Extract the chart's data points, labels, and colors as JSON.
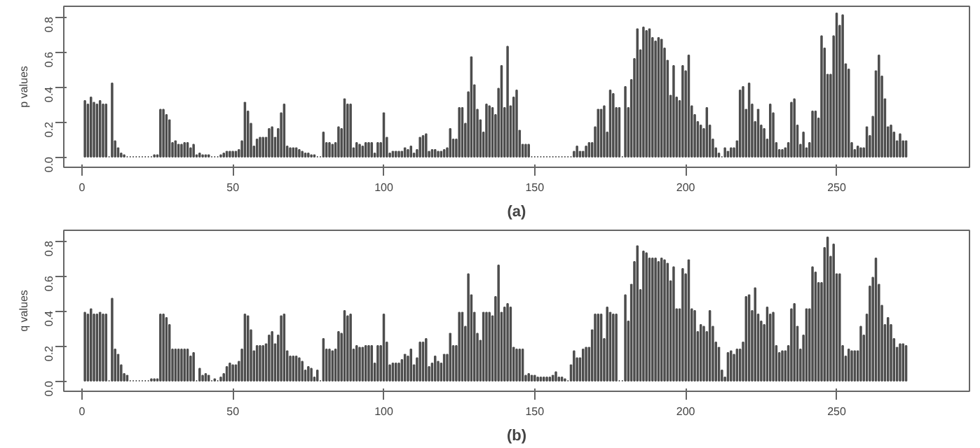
{
  "chart_data": [
    {
      "type": "bar",
      "xlabel": "(a)",
      "ylabel": "p values",
      "color": "#4d4d4d",
      "xlim": [
        -6,
        294
      ],
      "ylim": [
        -0.06,
        0.86
      ],
      "xticks": [
        0,
        50,
        100,
        150,
        200,
        250
      ],
      "yticks": [
        {
          "value": 0,
          "label": "0.0"
        },
        {
          "value": 0.2,
          "label": "0.2"
        },
        {
          "value": 0.4,
          "label": "0.4"
        },
        {
          "value": 0.6,
          "label": "0.6"
        },
        {
          "value": 0.8,
          "label": "0.8"
        }
      ],
      "x": [
        1,
        2,
        3,
        4,
        5,
        6,
        7,
        8,
        9,
        10,
        11,
        12,
        13,
        14,
        15,
        16,
        17,
        18,
        19,
        20,
        21,
        22,
        23,
        24,
        25,
        26,
        27,
        28,
        29,
        30,
        31,
        32,
        33,
        34,
        35,
        36,
        37,
        38,
        39,
        40,
        41,
        42,
        43,
        44,
        45,
        46,
        47,
        48,
        49,
        50,
        51,
        52,
        53,
        54,
        55,
        56,
        57,
        58,
        59,
        60,
        61,
        62,
        63,
        64,
        65,
        66,
        67,
        68,
        69,
        70,
        71,
        72,
        73,
        74,
        75,
        76,
        77,
        78,
        79,
        80,
        81,
        82,
        83,
        84,
        85,
        86,
        87,
        88,
        89,
        90,
        91,
        92,
        93,
        94,
        95,
        96,
        97,
        98,
        99,
        100,
        101,
        102,
        103,
        104,
        105,
        106,
        107,
        108,
        109,
        110,
        111,
        112,
        113,
        114,
        115,
        116,
        117,
        118,
        119,
        120,
        121,
        122,
        123,
        124,
        125,
        126,
        127,
        128,
        129,
        130,
        131,
        132,
        133,
        134,
        135,
        136,
        137,
        138,
        139,
        140,
        141,
        142,
        143,
        144,
        145,
        146,
        147,
        148,
        149,
        150,
        151,
        152,
        153,
        154,
        155,
        156,
        157,
        158,
        159,
        160,
        161,
        162,
        163,
        164,
        165,
        166,
        167,
        168,
        169,
        170,
        171,
        172,
        173,
        174,
        175,
        176,
        177,
        178,
        179,
        180,
        181,
        182,
        183,
        184,
        185,
        186,
        187,
        188,
        189,
        190,
        191,
        192,
        193,
        194,
        195,
        196,
        197,
        198,
        199,
        200,
        201,
        202,
        203,
        204,
        205,
        206,
        207,
        208,
        209,
        210,
        211,
        212,
        213,
        214,
        215,
        216,
        217,
        218,
        219,
        220,
        221,
        222,
        223,
        224,
        225,
        226,
        227,
        228,
        229,
        230,
        231,
        232,
        233,
        234,
        235,
        236,
        237,
        238,
        239,
        240,
        241,
        242,
        243,
        244,
        245,
        246,
        247,
        248,
        249,
        250,
        251,
        252,
        253,
        254,
        255,
        256,
        257,
        258,
        259,
        260,
        261,
        262,
        263,
        264,
        265,
        266,
        267,
        268,
        269,
        270,
        271,
        272,
        273
      ],
      "values": [
        0.32,
        0.3,
        0.34,
        0.31,
        0.3,
        0.32,
        0.3,
        0.3,
        0.0,
        0.42,
        0.09,
        0.05,
        0.02,
        0.01,
        0.0,
        0.0,
        0.0,
        0.0,
        0.0,
        0.0,
        0.0,
        0.0,
        0.0,
        0.01,
        0.01,
        0.27,
        0.27,
        0.24,
        0.21,
        0.08,
        0.09,
        0.07,
        0.07,
        0.08,
        0.08,
        0.05,
        0.07,
        0.01,
        0.02,
        0.01,
        0.01,
        0.01,
        0.0,
        0.0,
        0.0,
        0.01,
        0.02,
        0.03,
        0.03,
        0.03,
        0.03,
        0.04,
        0.09,
        0.31,
        0.26,
        0.19,
        0.06,
        0.1,
        0.11,
        0.11,
        0.11,
        0.16,
        0.17,
        0.11,
        0.16,
        0.25,
        0.3,
        0.06,
        0.05,
        0.05,
        0.05,
        0.04,
        0.03,
        0.02,
        0.02,
        0.01,
        0.01,
        0.0,
        0.0,
        0.14,
        0.08,
        0.08,
        0.07,
        0.08,
        0.17,
        0.16,
        0.33,
        0.3,
        0.3,
        0.05,
        0.08,
        0.07,
        0.06,
        0.08,
        0.08,
        0.08,
        0.02,
        0.08,
        0.08,
        0.25,
        0.11,
        0.02,
        0.03,
        0.03,
        0.03,
        0.03,
        0.05,
        0.04,
        0.06,
        0.02,
        0.04,
        0.11,
        0.12,
        0.13,
        0.03,
        0.04,
        0.04,
        0.03,
        0.03,
        0.04,
        0.05,
        0.16,
        0.1,
        0.1,
        0.28,
        0.28,
        0.19,
        0.37,
        0.57,
        0.41,
        0.27,
        0.21,
        0.14,
        0.3,
        0.29,
        0.28,
        0.24,
        0.39,
        0.52,
        0.28,
        0.63,
        0.29,
        0.34,
        0.38,
        0.15,
        0.07,
        0.07,
        0.07,
        0.0,
        0.0,
        0.0,
        0.0,
        0.0,
        0.0,
        0.0,
        0.0,
        0.0,
        0.0,
        0.0,
        0.0,
        0.0,
        0.0,
        0.03,
        0.06,
        0.03,
        0.03,
        0.06,
        0.08,
        0.08,
        0.17,
        0.27,
        0.27,
        0.29,
        0.14,
        0.38,
        0.36,
        0.28,
        0.28,
        0.0,
        0.4,
        0.28,
        0.44,
        0.56,
        0.73,
        0.61,
        0.74,
        0.72,
        0.73,
        0.68,
        0.66,
        0.68,
        0.67,
        0.62,
        0.55,
        0.35,
        0.52,
        0.34,
        0.32,
        0.52,
        0.49,
        0.58,
        0.29,
        0.24,
        0.2,
        0.18,
        0.16,
        0.28,
        0.18,
        0.1,
        0.05,
        0.02,
        0.0,
        0.05,
        0.03,
        0.05,
        0.05,
        0.09,
        0.38,
        0.4,
        0.27,
        0.42,
        0.3,
        0.2,
        0.27,
        0.18,
        0.16,
        0.1,
        0.3,
        0.25,
        0.08,
        0.04,
        0.04,
        0.05,
        0.08,
        0.31,
        0.33,
        0.18,
        0.07,
        0.14,
        0.05,
        0.08,
        0.26,
        0.26,
        0.22,
        0.69,
        0.62,
        0.47,
        0.47,
        0.69,
        0.82,
        0.75,
        0.81,
        0.53,
        0.5,
        0.08,
        0.04,
        0.06,
        0.05,
        0.05,
        0.17,
        0.12,
        0.23,
        0.49,
        0.58,
        0.46,
        0.33,
        0.17,
        0.18,
        0.14,
        0.09,
        0.13,
        0.09,
        0.09
      ]
    },
    {
      "type": "bar",
      "xlabel": "(b)",
      "ylabel": "q values",
      "color": "#4d4d4d",
      "xlim": [
        -6,
        294
      ],
      "ylim": [
        -0.06,
        0.86
      ],
      "xticks": [
        0,
        50,
        100,
        150,
        200,
        250
      ],
      "yticks": [
        {
          "value": 0,
          "label": "0.0"
        },
        {
          "value": 0.2,
          "label": "0.2"
        },
        {
          "value": 0.4,
          "label": "0.4"
        },
        {
          "value": 0.6,
          "label": "0.6"
        },
        {
          "value": 0.8,
          "label": "0.8"
        }
      ],
      "x": [
        1,
        2,
        3,
        4,
        5,
        6,
        7,
        8,
        9,
        10,
        11,
        12,
        13,
        14,
        15,
        16,
        17,
        18,
        19,
        20,
        21,
        22,
        23,
        24,
        25,
        26,
        27,
        28,
        29,
        30,
        31,
        32,
        33,
        34,
        35,
        36,
        37,
        38,
        39,
        40,
        41,
        42,
        43,
        44,
        45,
        46,
        47,
        48,
        49,
        50,
        51,
        52,
        53,
        54,
        55,
        56,
        57,
        58,
        59,
        60,
        61,
        62,
        63,
        64,
        65,
        66,
        67,
        68,
        69,
        70,
        71,
        72,
        73,
        74,
        75,
        76,
        77,
        78,
        79,
        80,
        81,
        82,
        83,
        84,
        85,
        86,
        87,
        88,
        89,
        90,
        91,
        92,
        93,
        94,
        95,
        96,
        97,
        98,
        99,
        100,
        101,
        102,
        103,
        104,
        105,
        106,
        107,
        108,
        109,
        110,
        111,
        112,
        113,
        114,
        115,
        116,
        117,
        118,
        119,
        120,
        121,
        122,
        123,
        124,
        125,
        126,
        127,
        128,
        129,
        130,
        131,
        132,
        133,
        134,
        135,
        136,
        137,
        138,
        139,
        140,
        141,
        142,
        143,
        144,
        145,
        146,
        147,
        148,
        149,
        150,
        151,
        152,
        153,
        154,
        155,
        156,
        157,
        158,
        159,
        160,
        161,
        162,
        163,
        164,
        165,
        166,
        167,
        168,
        169,
        170,
        171,
        172,
        173,
        174,
        175,
        176,
        177,
        178,
        179,
        180,
        181,
        182,
        183,
        184,
        185,
        186,
        187,
        188,
        189,
        190,
        191,
        192,
        193,
        194,
        195,
        196,
        197,
        198,
        199,
        200,
        201,
        202,
        203,
        204,
        205,
        206,
        207,
        208,
        209,
        210,
        211,
        212,
        213,
        214,
        215,
        216,
        217,
        218,
        219,
        220,
        221,
        222,
        223,
        224,
        225,
        226,
        227,
        228,
        229,
        230,
        231,
        232,
        233,
        234,
        235,
        236,
        237,
        238,
        239,
        240,
        241,
        242,
        243,
        244,
        245,
        246,
        247,
        248,
        249,
        250,
        251,
        252,
        253,
        254,
        255,
        256,
        257,
        258,
        259,
        260,
        261,
        262,
        263,
        264,
        265,
        266,
        267,
        268,
        269,
        270,
        271,
        272,
        273
      ],
      "values": [
        0.39,
        0.38,
        0.41,
        0.38,
        0.38,
        0.39,
        0.38,
        0.38,
        0.0,
        0.47,
        0.18,
        0.15,
        0.09,
        0.04,
        0.03,
        0.0,
        0.0,
        0.0,
        0.0,
        0.0,
        0.0,
        0.0,
        0.01,
        0.01,
        0.01,
        0.38,
        0.38,
        0.36,
        0.32,
        0.18,
        0.18,
        0.18,
        0.18,
        0.18,
        0.18,
        0.14,
        0.16,
        0.0,
        0.07,
        0.03,
        0.04,
        0.03,
        0.0,
        0.01,
        0.0,
        0.02,
        0.04,
        0.08,
        0.1,
        0.09,
        0.09,
        0.11,
        0.18,
        0.38,
        0.37,
        0.29,
        0.17,
        0.2,
        0.2,
        0.2,
        0.21,
        0.26,
        0.28,
        0.21,
        0.26,
        0.37,
        0.38,
        0.17,
        0.14,
        0.14,
        0.14,
        0.13,
        0.11,
        0.06,
        0.08,
        0.07,
        0.02,
        0.06,
        0.0,
        0.24,
        0.18,
        0.18,
        0.17,
        0.18,
        0.28,
        0.27,
        0.4,
        0.37,
        0.38,
        0.18,
        0.2,
        0.19,
        0.19,
        0.2,
        0.2,
        0.2,
        0.1,
        0.2,
        0.2,
        0.38,
        0.22,
        0.09,
        0.1,
        0.1,
        0.1,
        0.12,
        0.15,
        0.14,
        0.18,
        0.09,
        0.13,
        0.22,
        0.22,
        0.24,
        0.08,
        0.1,
        0.14,
        0.11,
        0.1,
        0.15,
        0.15,
        0.27,
        0.2,
        0.2,
        0.39,
        0.39,
        0.31,
        0.61,
        0.49,
        0.39,
        0.27,
        0.23,
        0.39,
        0.39,
        0.39,
        0.37,
        0.48,
        0.66,
        0.39,
        0.42,
        0.44,
        0.42,
        0.19,
        0.18,
        0.18,
        0.18,
        0.03,
        0.04,
        0.03,
        0.03,
        0.02,
        0.02,
        0.02,
        0.02,
        0.02,
        0.03,
        0.05,
        0.02,
        0.02,
        0.01,
        0.0,
        0.09,
        0.17,
        0.13,
        0.13,
        0.18,
        0.19,
        0.19,
        0.29,
        0.38,
        0.38,
        0.38,
        0.24,
        0.42,
        0.39,
        0.38,
        0.38,
        0.0,
        0.0,
        0.49,
        0.34,
        0.55,
        0.68,
        0.77,
        0.52,
        0.74,
        0.73,
        0.7,
        0.7,
        0.7,
        0.68,
        0.7,
        0.69,
        0.67,
        0.57,
        0.65,
        0.41,
        0.41,
        0.64,
        0.61,
        0.69,
        0.41,
        0.4,
        0.28,
        0.32,
        0.31,
        0.28,
        0.4,
        0.31,
        0.22,
        0.19,
        0.06,
        0.02,
        0.16,
        0.17,
        0.15,
        0.18,
        0.18,
        0.22,
        0.48,
        0.49,
        0.4,
        0.53,
        0.38,
        0.34,
        0.32,
        0.42,
        0.38,
        0.39,
        0.2,
        0.16,
        0.17,
        0.17,
        0.2,
        0.41,
        0.44,
        0.31,
        0.18,
        0.26,
        0.41,
        0.41,
        0.65,
        0.62,
        0.56,
        0.56,
        0.76,
        0.82,
        0.71,
        0.78,
        0.61,
        0.61,
        0.2,
        0.14,
        0.18,
        0.17,
        0.17,
        0.17,
        0.31,
        0.26,
        0.38,
        0.54,
        0.59,
        0.7,
        0.55,
        0.43,
        0.32,
        0.36,
        0.32,
        0.24,
        0.19,
        0.21,
        0.21,
        0.2
      ]
    }
  ]
}
